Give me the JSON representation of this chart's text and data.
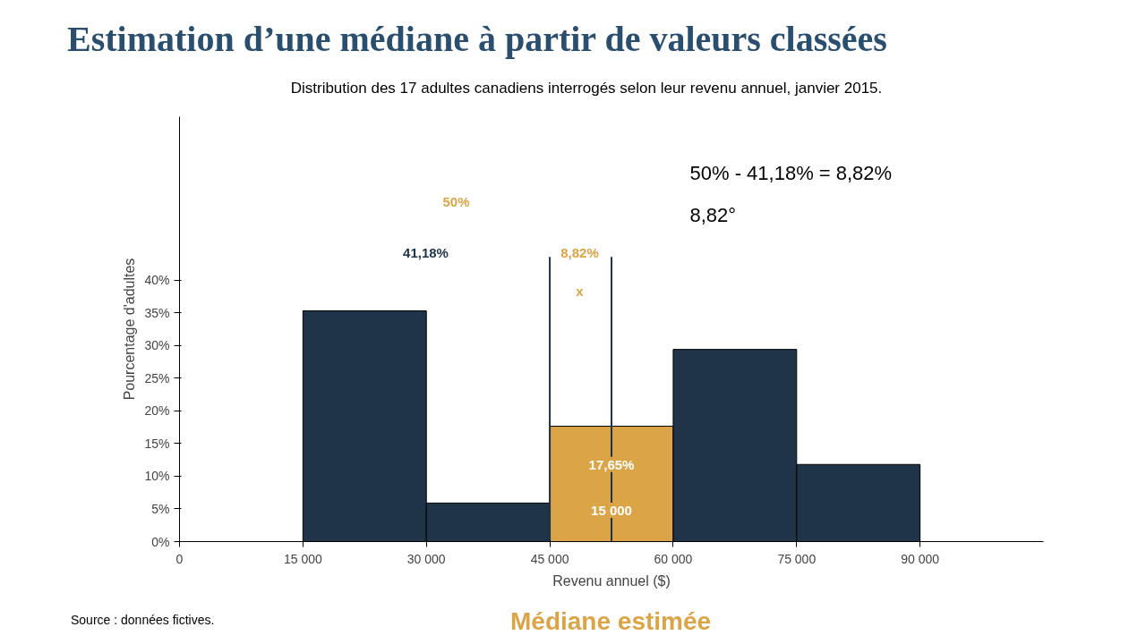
{
  "chart_data": {
    "type": "histogram",
    "title": "Estimation d’une médiane à partir de valeurs classées",
    "subtitle": "Distribution des 17 adultes canadiens interrogés selon leur revenu annuel, janvier 2015.",
    "xlabel": "Revenu annuel ($)",
    "ylabel": "Pourcentage d'adultes",
    "bins": [
      15000,
      30000,
      45000,
      60000,
      75000,
      90000
    ],
    "values": [
      35.3,
      5.9,
      17.65,
      29.4,
      11.8
    ],
    "colors": [
      "#1f3349",
      "#1f3349",
      "#dba447",
      "#1f3349",
      "#1f3349"
    ],
    "xlim": [
      0,
      105000
    ],
    "ylim": [
      0,
      65
    ],
    "xticks": [
      {
        "value": 0,
        "label": "0"
      },
      {
        "value": 15000,
        "label": "15 000"
      },
      {
        "value": 30000,
        "label": "30 000"
      },
      {
        "value": 45000,
        "label": "45 000"
      },
      {
        "value": 60000,
        "label": "60 000"
      },
      {
        "value": 75000,
        "label": "75 000"
      },
      {
        "value": 90000,
        "label": "90 000"
      }
    ],
    "yticks": [
      {
        "value": 0,
        "label": "0%"
      },
      {
        "value": 5,
        "label": "5%"
      },
      {
        "value": 10,
        "label": "10%"
      },
      {
        "value": 15,
        "label": "15%"
      },
      {
        "value": 20,
        "label": "20%"
      },
      {
        "value": 25,
        "label": "25%"
      },
      {
        "value": 30,
        "label": "30%"
      },
      {
        "value": 35,
        "label": "35%"
      },
      {
        "value": 40,
        "label": "40%"
      }
    ],
    "ref_lines": [
      {
        "axis": "x",
        "value": 45000,
        "label": null,
        "color": "#1f3349"
      },
      {
        "axis": "x",
        "value": 52500,
        "label": null,
        "color": "#1f3349"
      }
    ],
    "annotations": [
      "50%",
      "41,18%",
      "8,82%",
      "x",
      {
        "text": "17,65%",
        "x": 52500,
        "y": 11.8
      },
      {
        "text": "15 000",
        "x": 52500,
        "y": 4.8
      },
      "50% - 41,18% = 8,82%",
      "8,82°",
      "Médiane estimée",
      "Source : données fictives."
    ],
    "grid": false
  }
}
